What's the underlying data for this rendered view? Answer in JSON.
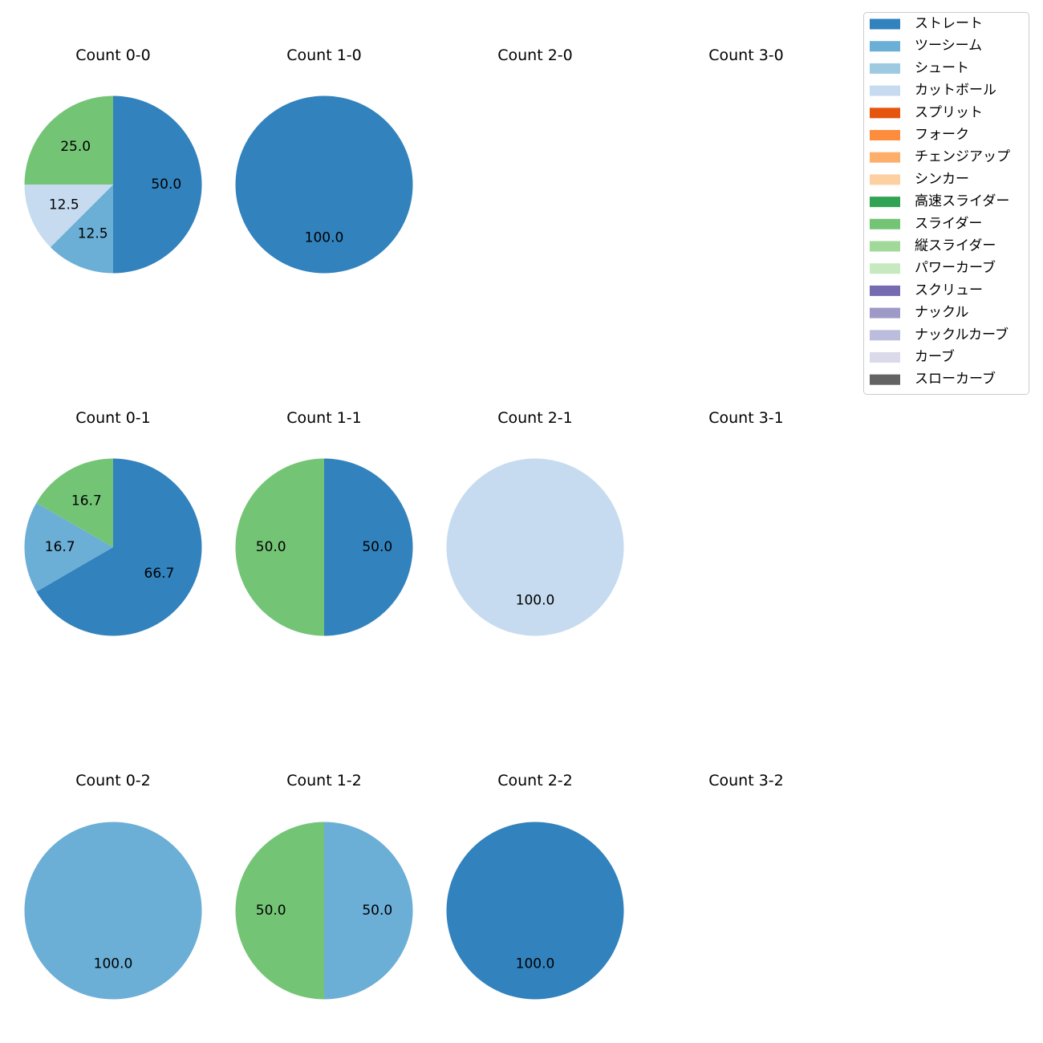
{
  "chart_data": {
    "type": "pie",
    "legend": {
      "placement": "top-right",
      "entries": [
        {
          "name": "ストレート",
          "color": "#3182bd"
        },
        {
          "name": "ツーシーム",
          "color": "#6baed6"
        },
        {
          "name": "シュート",
          "color": "#9ecae1"
        },
        {
          "name": "カットボール",
          "color": "#c6dbef"
        },
        {
          "name": "スプリット",
          "color": "#e6550d"
        },
        {
          "name": "フォーク",
          "color": "#fd8d3c"
        },
        {
          "name": "チェンジアップ",
          "color": "#fdae6b"
        },
        {
          "name": "シンカー",
          "color": "#fdd0a2"
        },
        {
          "name": "高速スライダー",
          "color": "#31a354"
        },
        {
          "name": "スライダー",
          "color": "#74c476"
        },
        {
          "name": "縦スライダー",
          "color": "#a1d99b"
        },
        {
          "name": "パワーカーブ",
          "color": "#c7e9c0"
        },
        {
          "name": "スクリュー",
          "color": "#756bb1"
        },
        {
          "name": "ナックル",
          "color": "#9e9ac8"
        },
        {
          "name": "ナックルカーブ",
          "color": "#bcbddc"
        },
        {
          "name": "カーブ",
          "color": "#dadaeb"
        },
        {
          "name": "スローカーブ",
          "color": "#636363"
        }
      ]
    },
    "panels": [
      {
        "title": "Count 0-0",
        "slices": [
          {
            "pitch": "ストレート",
            "value": 50.0,
            "label": "50.0"
          },
          {
            "pitch": "ツーシーム",
            "value": 12.5,
            "label": "12.5"
          },
          {
            "pitch": "カットボール",
            "value": 12.5,
            "label": "12.5"
          },
          {
            "pitch": "スライダー",
            "value": 25.0,
            "label": "25.0"
          }
        ]
      },
      {
        "title": "Count 1-0",
        "slices": [
          {
            "pitch": "ストレート",
            "value": 100.0,
            "label": "100.0"
          }
        ]
      },
      {
        "title": "Count 2-0",
        "slices": []
      },
      {
        "title": "Count 3-0",
        "slices": []
      },
      {
        "title": "Count 0-1",
        "slices": [
          {
            "pitch": "ストレート",
            "value": 66.7,
            "label": "66.7"
          },
          {
            "pitch": "ツーシーム",
            "value": 16.7,
            "label": "16.7"
          },
          {
            "pitch": "スライダー",
            "value": 16.7,
            "label": "16.7"
          }
        ]
      },
      {
        "title": "Count 1-1",
        "slices": [
          {
            "pitch": "ストレート",
            "value": 50.0,
            "label": "50.0"
          },
          {
            "pitch": "スライダー",
            "value": 50.0,
            "label": "50.0"
          }
        ]
      },
      {
        "title": "Count 2-1",
        "slices": [
          {
            "pitch": "カットボール",
            "value": 100.0,
            "label": "100.0"
          }
        ]
      },
      {
        "title": "Count 3-1",
        "slices": []
      },
      {
        "title": "Count 0-2",
        "slices": [
          {
            "pitch": "ツーシーム",
            "value": 100.0,
            "label": "100.0"
          }
        ]
      },
      {
        "title": "Count 1-2",
        "slices": [
          {
            "pitch": "ツーシーム",
            "value": 50.0,
            "label": "50.0"
          },
          {
            "pitch": "スライダー",
            "value": 50.0,
            "label": "50.0"
          }
        ]
      },
      {
        "title": "Count 2-2",
        "slices": [
          {
            "pitch": "ストレート",
            "value": 100.0,
            "label": "100.0"
          }
        ]
      },
      {
        "title": "Count 3-2",
        "slices": []
      }
    ]
  }
}
